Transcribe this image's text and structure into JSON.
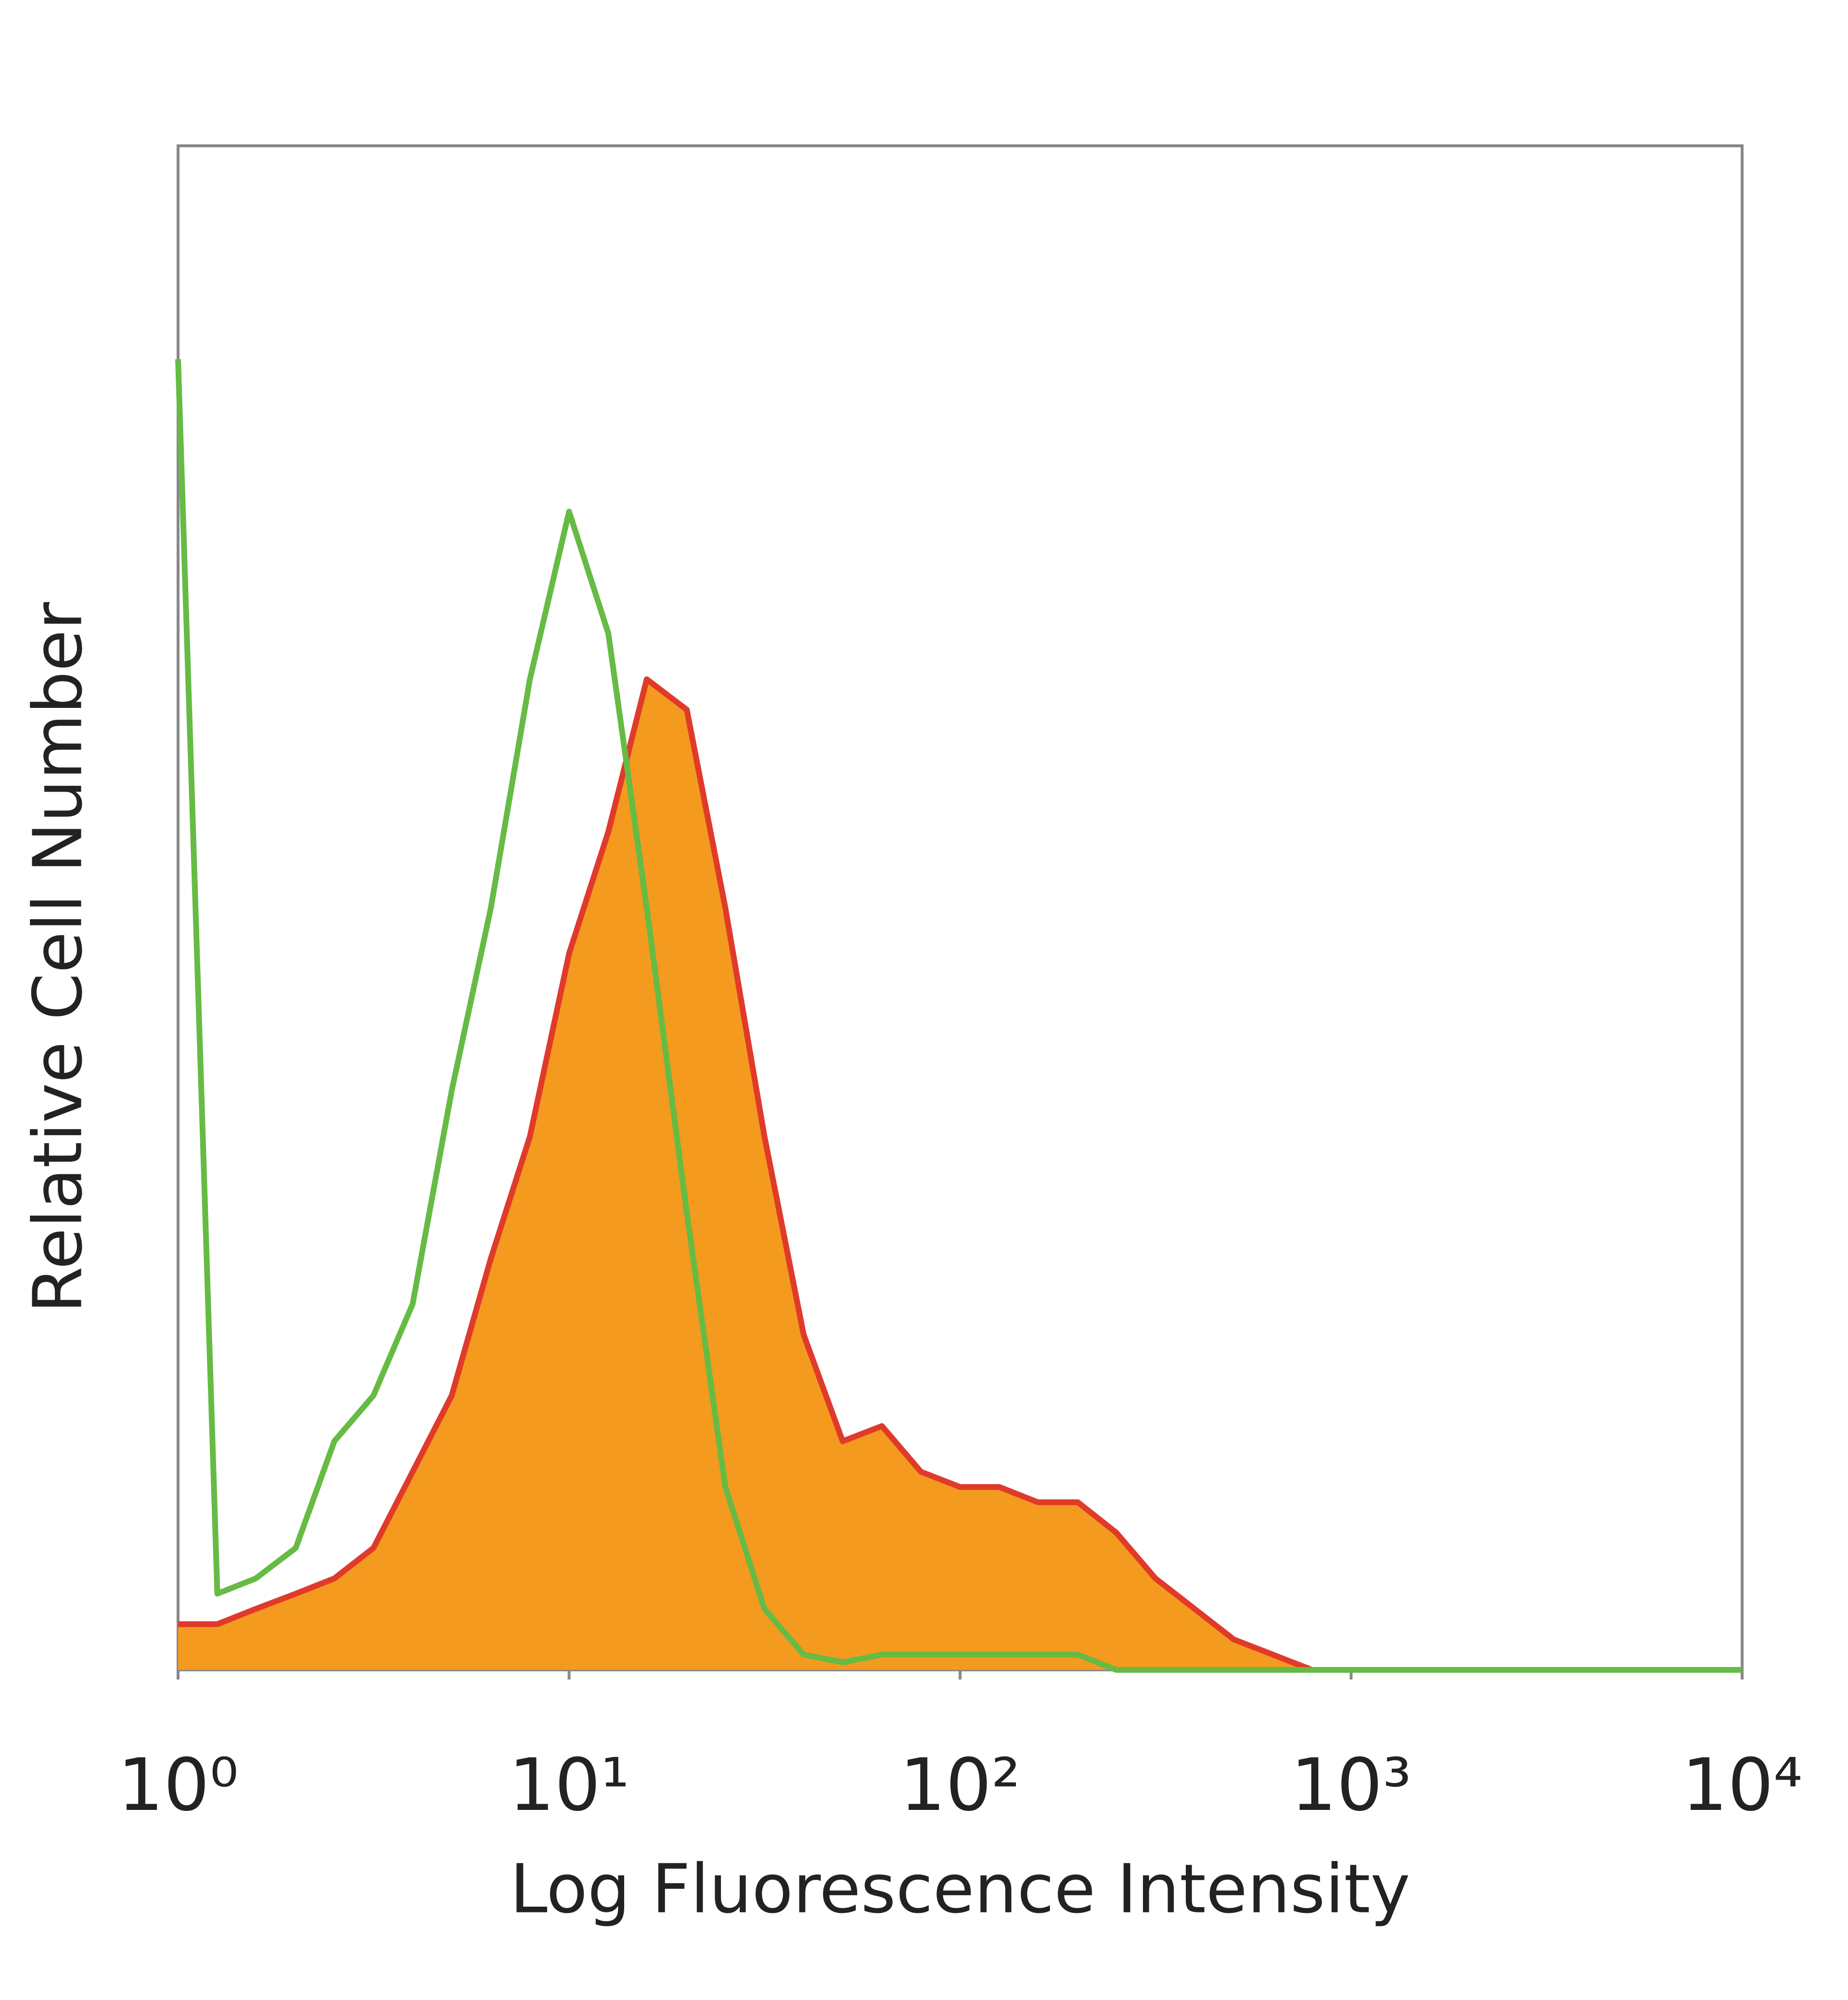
{
  "chart_data": {
    "type": "histogram-line",
    "xlabel": "Log Fluorescence Intensity",
    "ylabel": "Relative Cell Number",
    "xscale": "log",
    "xlim": [
      1,
      10000
    ],
    "xticks": [
      {
        "value": 1,
        "label": "10⁰"
      },
      {
        "value": 10,
        "label": "10¹"
      },
      {
        "value": 100,
        "label": "10²"
      },
      {
        "value": 1000,
        "label": "10³"
      },
      {
        "value": 10000,
        "label": "10⁴"
      }
    ],
    "ylim": [
      0,
      100
    ],
    "x": [
      1,
      1.26,
      1.58,
      2,
      2.51,
      3.16,
      3.98,
      5.01,
      6.31,
      7.94,
      10,
      12.6,
      15.8,
      20,
      25.1,
      31.6,
      39.8,
      50.1,
      63.1,
      79.4,
      100,
      126,
      158,
      200,
      251,
      316,
      398,
      501,
      631,
      794,
      1000,
      1260,
      1580,
      2000,
      2510,
      3160,
      3980,
      5010,
      6310,
      7940,
      10000
    ],
    "series": [
      {
        "color": "#f39a1f",
        "stroke": "#e03a2a",
        "filled": true,
        "values": [
          3,
          3,
          4,
          5,
          6,
          8,
          13,
          18,
          27,
          35,
          47,
          55,
          65,
          63,
          50,
          35,
          22,
          15,
          16,
          13,
          12,
          12,
          11,
          11,
          9,
          6,
          4,
          2,
          1,
          0,
          0,
          0,
          0,
          0,
          0,
          0,
          0,
          0,
          0,
          0,
          0
        ]
      },
      {
        "color": "#66bb44",
        "filled": false,
        "values": [
          86,
          5,
          6,
          8,
          15,
          18,
          24,
          38,
          50,
          65,
          76,
          68,
          50,
          30,
          12,
          4,
          1,
          0.5,
          1,
          1,
          1,
          1,
          1,
          1,
          0,
          0,
          0,
          0,
          0,
          0,
          0,
          0,
          0,
          0,
          0,
          0,
          0,
          0,
          0,
          0,
          0
        ]
      }
    ]
  }
}
